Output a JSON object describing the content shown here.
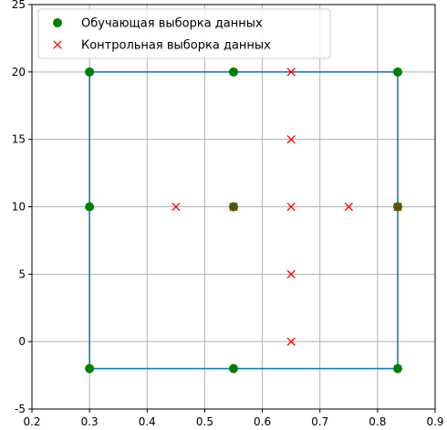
{
  "chart_data": {
    "type": "scatter",
    "title": "",
    "xlabel": "",
    "ylabel": "",
    "xlim": [
      0.2,
      0.9
    ],
    "ylim": [
      -5,
      25
    ],
    "x_ticks": [
      0.2,
      0.3,
      0.4,
      0.5,
      0.6,
      0.7,
      0.8,
      0.9
    ],
    "y_ticks": [
      -5,
      0,
      5,
      10,
      15,
      20,
      25
    ],
    "grid": true,
    "legend_position": "top-left",
    "boundary": {
      "color": "#1f77b4",
      "points": [
        [
          0.3,
          -2
        ],
        [
          0.3,
          20
        ],
        [
          0.835,
          20
        ],
        [
          0.835,
          -2
        ],
        [
          0.3,
          -2
        ]
      ]
    },
    "series": [
      {
        "name": "Обучающая выборка данных",
        "marker": "circle",
        "color": "#008000",
        "points": [
          [
            0.3,
            -2
          ],
          [
            0.3,
            10
          ],
          [
            0.3,
            20
          ],
          [
            0.55,
            -2
          ],
          [
            0.55,
            10
          ],
          [
            0.55,
            20
          ],
          [
            0.835,
            -2
          ],
          [
            0.835,
            10
          ],
          [
            0.835,
            20
          ]
        ]
      },
      {
        "name": "Контрольная выборка данных",
        "marker": "x",
        "color": "#ff0000",
        "points": [
          [
            0.45,
            10
          ],
          [
            0.55,
            10
          ],
          [
            0.65,
            10
          ],
          [
            0.75,
            10
          ],
          [
            0.835,
            10
          ],
          [
            0.65,
            0
          ],
          [
            0.65,
            5
          ],
          [
            0.65,
            15
          ],
          [
            0.65,
            20
          ]
        ]
      }
    ]
  }
}
